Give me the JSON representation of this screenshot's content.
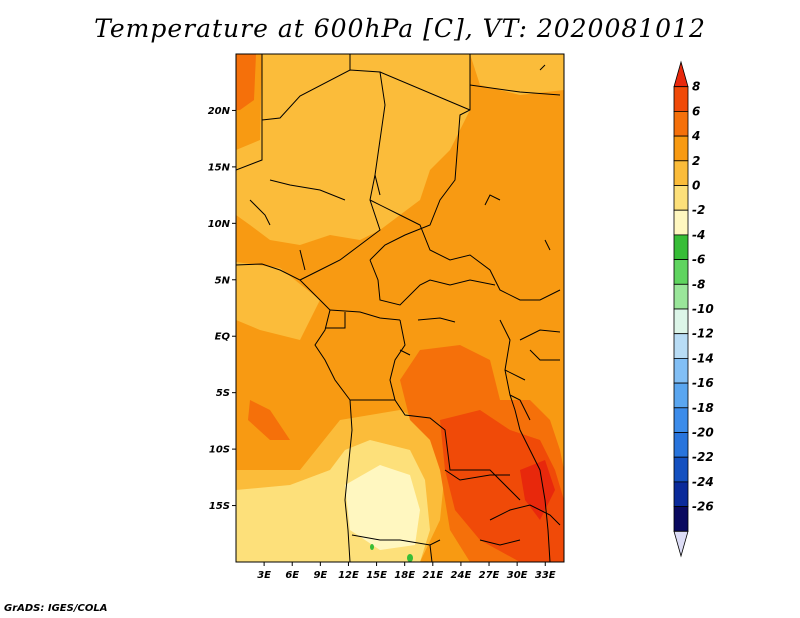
{
  "title": "Temperature at 600hPa [C], VT: 2020081012",
  "footer": "GrADS: IGES/COLA",
  "map": {
    "lon_range": [
      0,
      35
    ],
    "lat_range": [
      -20,
      25
    ],
    "lat_ticks": [
      {
        "value": 20,
        "label": "20N"
      },
      {
        "value": 15,
        "label": "15N"
      },
      {
        "value": 10,
        "label": "10N"
      },
      {
        "value": 5,
        "label": "5N"
      },
      {
        "value": 0,
        "label": "EQ"
      },
      {
        "value": -5,
        "label": "5S"
      },
      {
        "value": -10,
        "label": "10S"
      },
      {
        "value": -15,
        "label": "15S"
      }
    ],
    "lon_ticks": [
      {
        "value": 3,
        "label": "3E"
      },
      {
        "value": 6,
        "label": "6E"
      },
      {
        "value": 9,
        "label": "9E"
      },
      {
        "value": 12,
        "label": "12E"
      },
      {
        "value": 15,
        "label": "15E"
      },
      {
        "value": 18,
        "label": "18E"
      },
      {
        "value": 21,
        "label": "21E"
      },
      {
        "value": 24,
        "label": "24E"
      },
      {
        "value": 27,
        "label": "27E"
      },
      {
        "value": 30,
        "label": "30E"
      },
      {
        "value": 33,
        "label": "33E"
      }
    ]
  },
  "colorbar": {
    "levels": [
      "8",
      "6",
      "4",
      "2",
      "0",
      "-2",
      "-4",
      "-6",
      "-8",
      "-10",
      "-12",
      "-14",
      "-16",
      "-18",
      "-20",
      "-22",
      "-24",
      "-26"
    ],
    "colors": [
      "#e8280c",
      "#f04a08",
      "#f5700a",
      "#f89a12",
      "#fbbc3a",
      "#fde07a",
      "#fff7c0",
      "#37bd37",
      "#5fd45f",
      "#9ae69a",
      "#dcf5e8",
      "#b8dcf5",
      "#82bff5",
      "#5aa6f0",
      "#3c8cea",
      "#2874dc",
      "#1450c0",
      "#0a2a9a",
      "#0a0a60",
      "#dcdcf5"
    ]
  },
  "legend_colors": {
    "plus8": "#e8280c",
    "p6_8": "#f04a08",
    "p4_6": "#f5700a",
    "p2_4": "#f89a12",
    "p0_2": "#fbbc3a",
    "m2_0": "#fde07a",
    "m4_m2": "#fff7c0"
  }
}
